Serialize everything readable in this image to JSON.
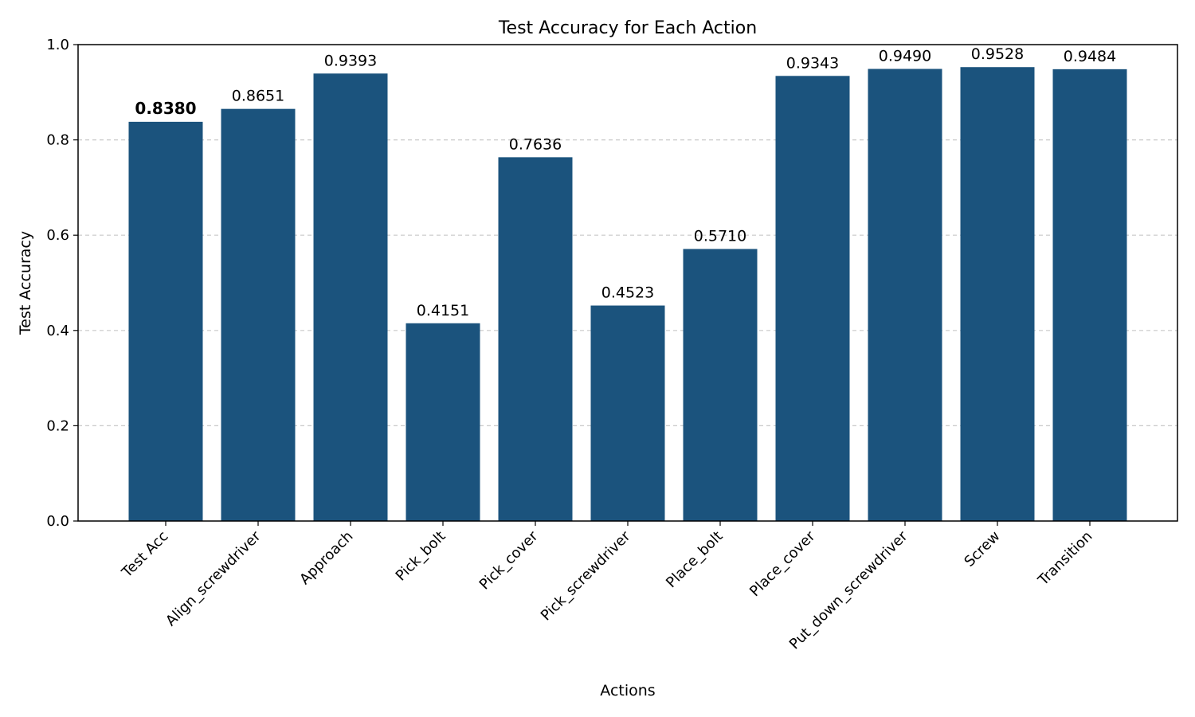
{
  "chart_data": {
    "type": "bar",
    "title": "Test Accuracy for Each Action",
    "xlabel": "Actions",
    "ylabel": "Test Accuracy",
    "ylim": [
      0,
      1.0
    ],
    "yticks": [
      "0.0",
      "0.2",
      "0.4",
      "0.6",
      "0.8",
      "1.0"
    ],
    "categories": [
      "Test Acc",
      "Align_screwdriver",
      "Approach",
      "Pick_bolt",
      "Pick_cover",
      "Pick_screwdriver",
      "Place_bolt",
      "Place_cover",
      "Put_down_screwdriver",
      "Screw",
      "Transition"
    ],
    "values": [
      0.838,
      0.8651,
      0.9393,
      0.4151,
      0.7636,
      0.4523,
      0.571,
      0.9343,
      0.949,
      0.9528,
      0.9484
    ],
    "value_labels": [
      "0.8380",
      "0.8651",
      "0.9393",
      "0.4151",
      "0.7636",
      "0.4523",
      "0.5710",
      "0.9343",
      "0.9490",
      "0.9528",
      "0.9484"
    ],
    "highlight_label_index": 0,
    "bar_color": "#1b537d",
    "grid": "horizontal-dashed",
    "grid_color": "#c8c8c8",
    "legend": "none"
  }
}
